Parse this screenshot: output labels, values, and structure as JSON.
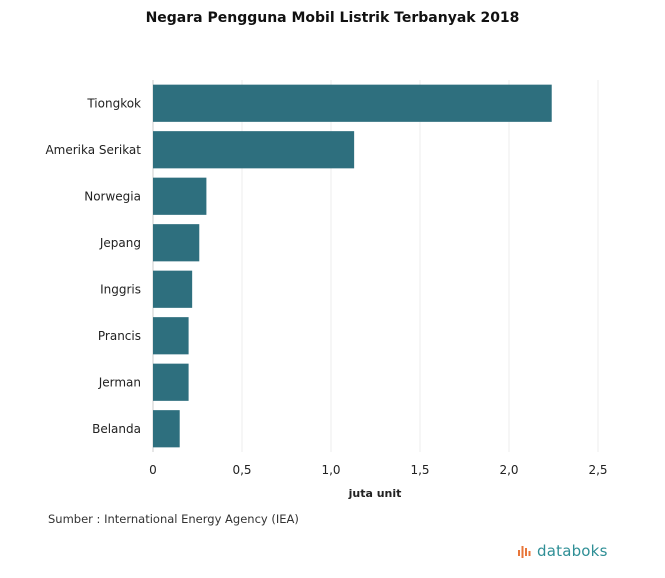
{
  "chart_data": {
    "type": "bar",
    "orientation": "horizontal",
    "title": "Negara Pengguna Mobil Listrik Terbanyak 2018",
    "xlabel": "juta unit",
    "ylabel": "",
    "categories": [
      "Tiongkok",
      "Amerika Serikat",
      "Norwegia",
      "Jepang",
      "Inggris",
      "Prancis",
      "Jerman",
      "Belanda"
    ],
    "values": [
      2.24,
      1.13,
      0.3,
      0.26,
      0.22,
      0.2,
      0.2,
      0.15
    ],
    "xlim": [
      0,
      2.5
    ],
    "xticks": [
      "0",
      "0,5",
      "1,0",
      "1,5",
      "2,0",
      "2,5"
    ],
    "grid": true,
    "bar_color": "#2e6f7e"
  },
  "footer": {
    "source": "Sumber : International Energy Agency (IEA)",
    "brand": "databoks"
  }
}
